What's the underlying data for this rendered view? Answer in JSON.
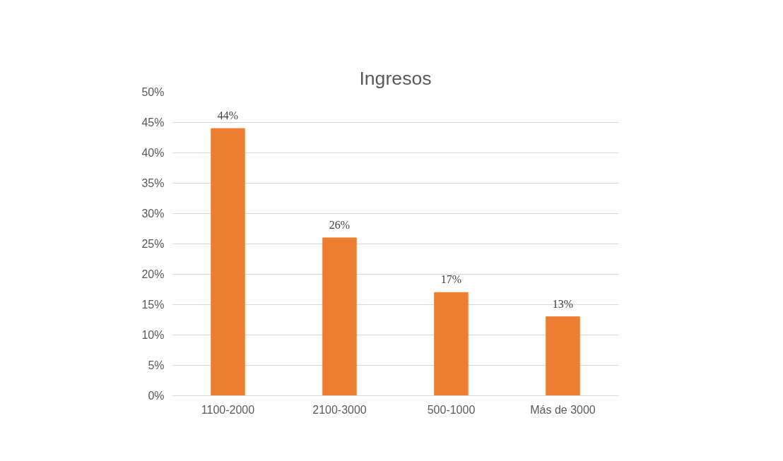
{
  "chart_data": {
    "type": "bar",
    "title": "Ingresos",
    "categories": [
      "1100-2000",
      "2100-3000",
      "500-1000",
      "Más de 3000"
    ],
    "values": [
      44,
      26,
      17,
      13
    ],
    "color": "#ed7d31",
    "value_labels": [
      "44%",
      "26%",
      "17%",
      "13%"
    ],
    "ylim": [
      0,
      50
    ],
    "yticks": [
      {
        "value": 0,
        "label": "0%"
      },
      {
        "value": 5,
        "label": "5%"
      },
      {
        "value": 10,
        "label": "10%"
      },
      {
        "value": 15,
        "label": "15%"
      },
      {
        "value": 20,
        "label": "20%"
      },
      {
        "value": 25,
        "label": "25%"
      },
      {
        "value": 30,
        "label": "30%"
      },
      {
        "value": 35,
        "label": "35%"
      },
      {
        "value": 40,
        "label": "40%"
      },
      {
        "value": 45,
        "label": "45%"
      },
      {
        "value": 50,
        "label": "50%"
      }
    ],
    "grid": "y"
  }
}
